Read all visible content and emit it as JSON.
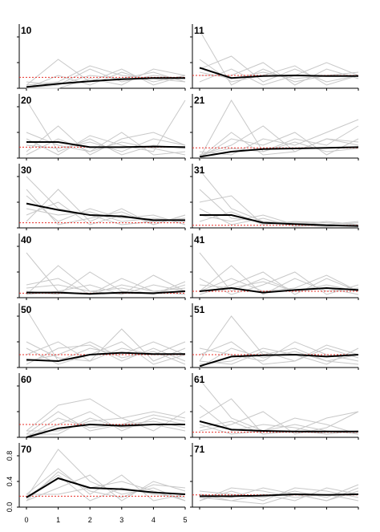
{
  "chart_data": {
    "type": "line",
    "layout": {
      "rows": 7,
      "cols": 2
    },
    "x_ticks": [
      0,
      1,
      2,
      3,
      4,
      5
    ],
    "y_ticks": [
      0.0,
      0.4,
      0.8
    ],
    "y_tick_labels": [
      "0.0",
      "0.4",
      "0.8"
    ],
    "ylim": [
      0,
      0.95
    ],
    "grid": false,
    "colors": {
      "mean": "#000000",
      "individual": "#c8c8c8",
      "reference": "#e8302a"
    },
    "panels": [
      {
        "label": "10",
        "mean": [
          0.02,
          0.07,
          0.11,
          0.14,
          0.16,
          0.16
        ],
        "ref": 0.17,
        "individuals": [
          [
            0.0,
            0.05,
            0.2,
            0.15,
            0.25,
            0.1
          ],
          [
            0.05,
            0.45,
            0.1,
            0.3,
            0.05,
            0.2
          ],
          [
            0.1,
            0.05,
            0.3,
            0.1,
            0.2,
            0.15
          ],
          [
            0.0,
            0.2,
            0.05,
            0.25,
            0.1,
            0.2
          ],
          [
            0.05,
            0.1,
            0.35,
            0.2,
            0.15,
            0.1
          ],
          [
            0.0,
            0.0,
            0.15,
            0.05,
            0.3,
            0.2
          ]
        ]
      },
      {
        "label": "11",
        "mean": [
          0.32,
          0.16,
          0.19,
          0.2,
          0.19,
          0.19
        ],
        "ref": 0.2,
        "individuals": [
          [
            0.9,
            0.05,
            0.3,
            0.1,
            0.2,
            0.2
          ],
          [
            0.3,
            0.5,
            0.1,
            0.3,
            0.1,
            0.2
          ],
          [
            0.2,
            0.2,
            0.4,
            0.05,
            0.3,
            0.15
          ],
          [
            0.45,
            0.1,
            0.2,
            0.35,
            0.05,
            0.2
          ],
          [
            0.1,
            0.3,
            0.05,
            0.2,
            0.4,
            0.2
          ],
          [
            0.25,
            0.15,
            0.25,
            0.15,
            0.2,
            0.25
          ]
        ]
      },
      {
        "label": "20",
        "mean": [
          0.25,
          0.25,
          0.17,
          0.17,
          0.18,
          0.17
        ],
        "ref": 0.17,
        "individuals": [
          [
            0.9,
            0.1,
            0.3,
            0.05,
            0.2,
            0.15
          ],
          [
            0.1,
            0.5,
            0.05,
            0.3,
            0.4,
            0.2
          ],
          [
            0.3,
            0.05,
            0.35,
            0.2,
            0.1,
            0.9
          ],
          [
            0.05,
            0.3,
            0.1,
            0.4,
            0.05,
            0.1
          ],
          [
            0.2,
            0.15,
            0.25,
            0.1,
            0.3,
            0.2
          ],
          [
            0.4,
            0.2,
            0.1,
            0.25,
            0.15,
            0.05
          ]
        ]
      },
      {
        "label": "21",
        "mean": [
          0.02,
          0.1,
          0.14,
          0.15,
          0.16,
          0.17
        ],
        "ref": 0.16,
        "individuals": [
          [
            0.0,
            0.9,
            0.1,
            0.3,
            0.2,
            0.5
          ],
          [
            0.05,
            0.2,
            0.5,
            0.1,
            0.3,
            0.2
          ],
          [
            0.0,
            0.3,
            0.2,
            0.4,
            0.05,
            0.3
          ],
          [
            0.1,
            0.05,
            0.3,
            0.2,
            0.4,
            0.6
          ],
          [
            0.05,
            0.15,
            0.1,
            0.25,
            0.1,
            0.15
          ],
          [
            0.0,
            0.4,
            0.05,
            0.1,
            0.3,
            0.25
          ]
        ]
      },
      {
        "label": "30",
        "mean": [
          0.38,
          0.28,
          0.2,
          0.18,
          0.12,
          0.12
        ],
        "ref": 0.08,
        "individuals": [
          [
            0.8,
            0.3,
            0.2,
            0.05,
            0.1,
            0.15
          ],
          [
            0.1,
            0.6,
            0.1,
            0.3,
            0.05,
            0.2
          ],
          [
            0.5,
            0.1,
            0.3,
            0.15,
            0.2,
            0.05
          ],
          [
            0.2,
            0.4,
            0.05,
            0.2,
            0.1,
            0.15
          ],
          [
            0.3,
            0.2,
            0.25,
            0.1,
            0.15,
            0.1
          ],
          [
            0.6,
            0.05,
            0.15,
            0.25,
            0.05,
            0.2
          ]
        ]
      },
      {
        "label": "31",
        "mean": [
          0.2,
          0.2,
          0.08,
          0.06,
          0.04,
          0.03
        ],
        "ref": 0.04,
        "individuals": [
          [
            0.9,
            0.3,
            0.1,
            0.05,
            0.1,
            0.05
          ],
          [
            0.4,
            0.5,
            0.05,
            0.1,
            0.05,
            0.1
          ],
          [
            0.2,
            0.1,
            0.2,
            0.05,
            0.02,
            0.05
          ],
          [
            0.6,
            0.15,
            0.1,
            0.08,
            0.05,
            0.02
          ],
          [
            0.1,
            0.25,
            0.05,
            0.1,
            0.08,
            0.05
          ],
          [
            0.3,
            0.05,
            0.15,
            0.02,
            0.05,
            0.08
          ]
        ]
      },
      {
        "label": "40",
        "mean": [
          0.08,
          0.08,
          0.06,
          0.08,
          0.07,
          0.1
        ],
        "ref": 0.07,
        "individuals": [
          [
            0.7,
            0.1,
            0.05,
            0.2,
            0.1,
            0.15
          ],
          [
            0.05,
            0.5,
            0.1,
            0.05,
            0.2,
            0.1
          ],
          [
            0.1,
            0.05,
            0.4,
            0.1,
            0.05,
            0.25
          ],
          [
            0.2,
            0.3,
            0.05,
            0.3,
            0.1,
            0.05
          ],
          [
            0.05,
            0.1,
            0.2,
            0.05,
            0.35,
            0.1
          ],
          [
            0.15,
            0.2,
            0.1,
            0.15,
            0.05,
            0.2
          ]
        ]
      },
      {
        "label": "41",
        "mean": [
          0.1,
          0.15,
          0.08,
          0.12,
          0.15,
          0.12
        ],
        "ref": 0.1,
        "individuals": [
          [
            0.7,
            0.1,
            0.3,
            0.1,
            0.2,
            0.1
          ],
          [
            0.1,
            0.5,
            0.05,
            0.3,
            0.1,
            0.15
          ],
          [
            0.05,
            0.2,
            0.4,
            0.05,
            0.3,
            0.1
          ],
          [
            0.3,
            0.05,
            0.2,
            0.4,
            0.05,
            0.2
          ],
          [
            0.1,
            0.3,
            0.1,
            0.15,
            0.35,
            0.1
          ],
          [
            0.2,
            0.15,
            0.25,
            0.1,
            0.15,
            0.05
          ]
        ]
      },
      {
        "label": "50",
        "mean": [
          0.12,
          0.1,
          0.2,
          0.23,
          0.21,
          0.21
        ],
        "ref": 0.2,
        "individuals": [
          [
            0.9,
            0.1,
            0.3,
            0.2,
            0.4,
            0.2
          ],
          [
            0.2,
            0.4,
            0.1,
            0.6,
            0.1,
            0.3
          ],
          [
            0.05,
            0.3,
            0.35,
            0.1,
            0.3,
            0.1
          ],
          [
            0.3,
            0.05,
            0.2,
            0.4,
            0.05,
            0.2
          ],
          [
            0.1,
            0.2,
            0.4,
            0.15,
            0.25,
            0.05
          ],
          [
            0.4,
            0.15,
            0.1,
            0.3,
            0.2,
            0.4
          ]
        ]
      },
      {
        "label": "51",
        "mean": [
          0.02,
          0.17,
          0.19,
          0.2,
          0.17,
          0.2
        ],
        "ref": 0.2,
        "individuals": [
          [
            0.1,
            0.8,
            0.2,
            0.3,
            0.1,
            0.2
          ],
          [
            0.2,
            0.4,
            0.05,
            0.1,
            0.3,
            0.15
          ],
          [
            0.05,
            0.1,
            0.3,
            0.2,
            0.05,
            0.3
          ],
          [
            0.3,
            0.2,
            0.1,
            0.4,
            0.2,
            0.1
          ],
          [
            0.1,
            0.05,
            0.25,
            0.1,
            0.35,
            0.2
          ],
          [
            0.0,
            0.3,
            0.15,
            0.25,
            0.1,
            0.05
          ]
        ]
      },
      {
        "label": "60",
        "mean": [
          0.0,
          0.14,
          0.2,
          0.18,
          0.2,
          0.2
        ],
        "ref": 0.2,
        "individuals": [
          [
            0.1,
            0.5,
            0.6,
            0.3,
            0.4,
            0.3
          ],
          [
            0.05,
            0.4,
            0.1,
            0.2,
            0.25,
            0.15
          ],
          [
            0.0,
            0.2,
            0.4,
            0.1,
            0.3,
            0.2
          ],
          [
            0.1,
            0.1,
            0.25,
            0.3,
            0.1,
            0.4
          ],
          [
            0.0,
            0.3,
            0.15,
            0.2,
            0.35,
            0.25
          ],
          [
            0.05,
            0.05,
            0.3,
            0.15,
            0.2,
            0.1
          ]
        ]
      },
      {
        "label": "61",
        "mean": [
          0.25,
          0.12,
          0.1,
          0.09,
          0.09,
          0.09
        ],
        "ref": 0.08,
        "individuals": [
          [
            0.9,
            0.3,
            0.1,
            0.2,
            0.1,
            0.05
          ],
          [
            0.3,
            0.6,
            0.05,
            0.1,
            0.05,
            0.1
          ],
          [
            0.1,
            0.2,
            0.4,
            0.05,
            0.15,
            0.4
          ],
          [
            0.5,
            0.1,
            0.2,
            0.15,
            0.05,
            0.1
          ],
          [
            0.2,
            0.05,
            0.1,
            0.3,
            0.2,
            0.05
          ],
          [
            0.15,
            0.25,
            0.05,
            0.1,
            0.3,
            0.4
          ]
        ]
      },
      {
        "label": "70",
        "mean": [
          0.15,
          0.45,
          0.3,
          0.28,
          0.23,
          0.2
        ],
        "ref": 0.17,
        "individuals": [
          [
            0.15,
            0.9,
            0.4,
            0.2,
            0.3,
            0.1
          ],
          [
            0.2,
            0.6,
            0.2,
            0.5,
            0.1,
            0.2
          ],
          [
            0.1,
            0.3,
            0.5,
            0.1,
            0.4,
            0.25
          ],
          [
            0.15,
            0.5,
            0.1,
            0.3,
            0.2,
            0.15
          ],
          [
            0.2,
            0.2,
            0.3,
            0.4,
            0.25,
            0.1
          ],
          [
            0.1,
            0.55,
            0.25,
            0.15,
            0.35,
            0.3
          ]
        ]
      },
      {
        "label": "71",
        "mean": [
          0.17,
          0.17,
          0.18,
          0.2,
          0.19,
          0.2
        ],
        "ref": 0.19,
        "individuals": [
          [
            0.2,
            0.15,
            0.3,
            0.2,
            0.1,
            0.3
          ],
          [
            0.1,
            0.25,
            0.1,
            0.3,
            0.25,
            0.15
          ],
          [
            0.15,
            0.1,
            0.2,
            0.1,
            0.3,
            0.2
          ],
          [
            0.25,
            0.2,
            0.15,
            0.25,
            0.15,
            0.35
          ],
          [
            0.1,
            0.3,
            0.25,
            0.15,
            0.2,
            0.1
          ],
          [
            0.2,
            0.1,
            0.05,
            0.2,
            0.1,
            0.25
          ]
        ]
      }
    ]
  }
}
